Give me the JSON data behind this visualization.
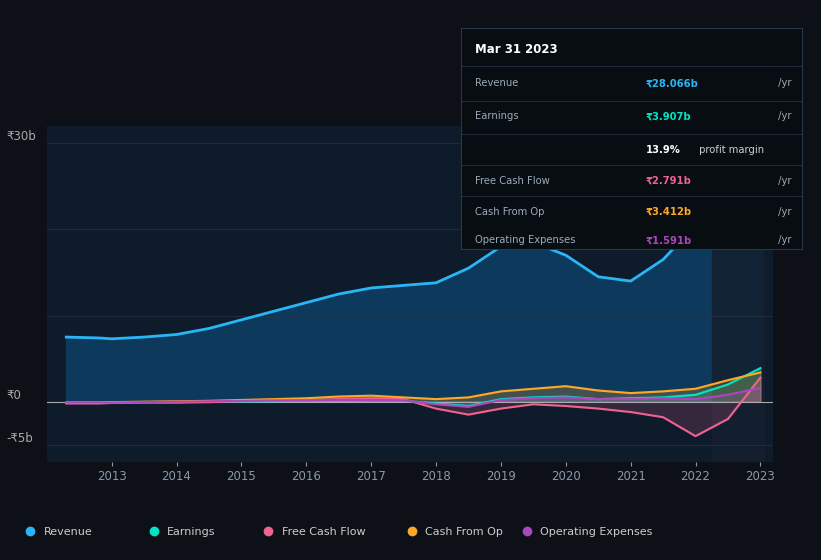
{
  "bg_color": "#0d1117",
  "plot_bg_color": "#0d1b2a",
  "grid_color": "#253545",
  "years": [
    2012.3,
    2012.8,
    2013.0,
    2013.5,
    2014.0,
    2014.5,
    2015.0,
    2015.5,
    2016.0,
    2016.5,
    2017.0,
    2017.5,
    2018.0,
    2018.5,
    2019.0,
    2019.5,
    2020.0,
    2020.5,
    2021.0,
    2021.5,
    2022.0,
    2022.5,
    2023.0
  ],
  "revenue": [
    7.5,
    7.4,
    7.3,
    7.5,
    7.8,
    8.5,
    9.5,
    10.5,
    11.5,
    12.5,
    13.2,
    13.5,
    13.8,
    15.5,
    18.0,
    18.5,
    17.0,
    14.5,
    14.0,
    16.5,
    20.5,
    25.0,
    28.0
  ],
  "earnings": [
    -0.15,
    -0.15,
    -0.1,
    -0.05,
    -0.05,
    0.0,
    0.0,
    0.05,
    0.1,
    0.1,
    0.15,
    0.1,
    -0.2,
    -0.5,
    0.3,
    0.5,
    0.6,
    0.3,
    0.4,
    0.5,
    0.8,
    2.0,
    3.9
  ],
  "free_cash_flow": [
    -0.2,
    -0.2,
    -0.15,
    -0.1,
    -0.1,
    -0.05,
    0.05,
    0.1,
    0.15,
    0.3,
    0.4,
    0.3,
    -0.8,
    -1.5,
    -0.8,
    -0.3,
    -0.5,
    -0.8,
    -1.2,
    -1.8,
    -4.0,
    -2.0,
    2.8
  ],
  "cash_from_op": [
    -0.1,
    -0.1,
    -0.05,
    0.0,
    0.05,
    0.1,
    0.2,
    0.3,
    0.4,
    0.6,
    0.7,
    0.5,
    0.3,
    0.5,
    1.2,
    1.5,
    1.8,
    1.3,
    1.0,
    1.2,
    1.5,
    2.5,
    3.4
  ],
  "operating_expenses": [
    -0.1,
    -0.1,
    -0.1,
    -0.05,
    0.0,
    0.05,
    0.1,
    0.15,
    0.15,
    0.2,
    0.2,
    0.15,
    -0.3,
    -0.6,
    0.2,
    0.4,
    0.5,
    0.3,
    0.3,
    0.4,
    0.3,
    0.8,
    1.6
  ],
  "revenue_color": "#29b6f6",
  "revenue_fill": "#0d3a5c",
  "earnings_color": "#00e5c3",
  "free_cash_flow_color": "#f06292",
  "cash_from_op_color": "#ffa726",
  "operating_expenses_color": "#ab47bc",
  "ylim_top": 32,
  "ylim_bottom": -7,
  "y_gridlines": [
    30,
    20,
    10,
    0,
    -5
  ],
  "ylabel_top": "₹30b",
  "ylabel_zero": "₹0",
  "ylabel_bottom": "-₹5b",
  "xlabel_years": [
    "2013",
    "2014",
    "2015",
    "2016",
    "2017",
    "2018",
    "2019",
    "2020",
    "2021",
    "2022",
    "2023"
  ],
  "xtick_years": [
    2013,
    2014,
    2015,
    2016,
    2017,
    2018,
    2019,
    2020,
    2021,
    2022,
    2023
  ],
  "tooltip_title": "Mar 31 2023",
  "tooltip_rows": [
    {
      "label": "Revenue",
      "value": "₹28.066b /yr",
      "color": "#29b6f6"
    },
    {
      "label": "Earnings",
      "value": "₹3.907b /yr",
      "color": "#00e5c3"
    },
    {
      "label": "",
      "value": "13.9% profit margin",
      "color": "#cccccc"
    },
    {
      "label": "Free Cash Flow",
      "value": "₹2.791b /yr",
      "color": "#f06292"
    },
    {
      "label": "Cash From Op",
      "value": "₹3.412b /yr",
      "color": "#ffa726"
    },
    {
      "label": "Operating Expenses",
      "value": "₹1.591b /yr",
      "color": "#ab47bc"
    }
  ],
  "legend_labels": [
    "Revenue",
    "Earnings",
    "Free Cash Flow",
    "Cash From Op",
    "Operating Expenses"
  ],
  "legend_colors": [
    "#29b6f6",
    "#00e5c3",
    "#f06292",
    "#ffa726",
    "#ab47bc"
  ],
  "highlight_start": 2022.25,
  "highlight_end": 2023.05
}
